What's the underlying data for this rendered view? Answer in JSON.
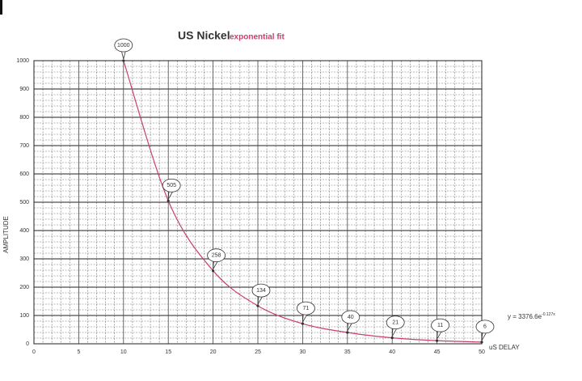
{
  "chart_data": {
    "type": "line",
    "title": "US Nickel",
    "subtitle": "exponential fit",
    "x_label": "uS DELAY",
    "y_label": "AMPLITUDE",
    "equation": "y = 3376.6e",
    "equation_exponent": "-0.127x",
    "x": [
      10,
      15,
      20,
      25,
      30,
      35,
      40,
      45,
      50
    ],
    "series": [
      {
        "name": "US Nickel",
        "color": "#c8406a",
        "values": [
          1000,
          505,
          258,
          134,
          71,
          40,
          21,
          11,
          6
        ]
      }
    ],
    "xlim": [
      0,
      50
    ],
    "xticks": [
      0,
      5,
      10,
      15,
      20,
      25,
      30,
      35,
      40,
      45,
      50
    ],
    "ylim": [
      0,
      1000
    ],
    "yticks": [
      0,
      100,
      200,
      300,
      400,
      500,
      600,
      700,
      800,
      900,
      1000
    ],
    "grid": true
  }
}
